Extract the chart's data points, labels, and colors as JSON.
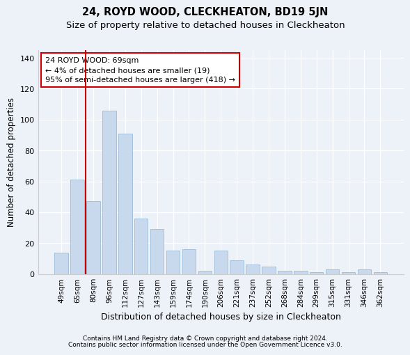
{
  "title1": "24, ROYD WOOD, CLECKHEATON, BD19 5JN",
  "title2": "Size of property relative to detached houses in Cleckheaton",
  "xlabel": "Distribution of detached houses by size in Cleckheaton",
  "ylabel": "Number of detached properties",
  "categories": [
    "49sqm",
    "65sqm",
    "80sqm",
    "96sqm",
    "112sqm",
    "127sqm",
    "143sqm",
    "159sqm",
    "174sqm",
    "190sqm",
    "206sqm",
    "221sqm",
    "237sqm",
    "252sqm",
    "268sqm",
    "284sqm",
    "299sqm",
    "315sqm",
    "331sqm",
    "346sqm",
    "362sqm"
  ],
  "values": [
    14,
    61,
    47,
    106,
    91,
    36,
    29,
    15,
    16,
    2,
    15,
    9,
    6,
    5,
    2,
    2,
    1,
    3,
    1,
    3,
    1
  ],
  "bar_color": "#c8d9ee",
  "bar_edge_color": "#9bbcda",
  "bg_color": "#edf1f8",
  "vline_x": 1.5,
  "vline_color": "#cc0000",
  "annotation_text": "24 ROYD WOOD: 69sqm\n← 4% of detached houses are smaller (19)\n95% of semi-detached houses are larger (418) →",
  "annotation_box_color": "#ffffff",
  "annotation_box_edge": "#cc0000",
  "footnote1": "Contains HM Land Registry data © Crown copyright and database right 2024.",
  "footnote2": "Contains public sector information licensed under the Open Government Licence v3.0.",
  "ylim": [
    0,
    145
  ],
  "title1_fontsize": 10.5,
  "title2_fontsize": 9.5,
  "tick_fontsize": 7.5,
  "ylabel_fontsize": 8.5,
  "xlabel_fontsize": 9,
  "annotation_fontsize": 8,
  "footnote_fontsize": 6.5
}
